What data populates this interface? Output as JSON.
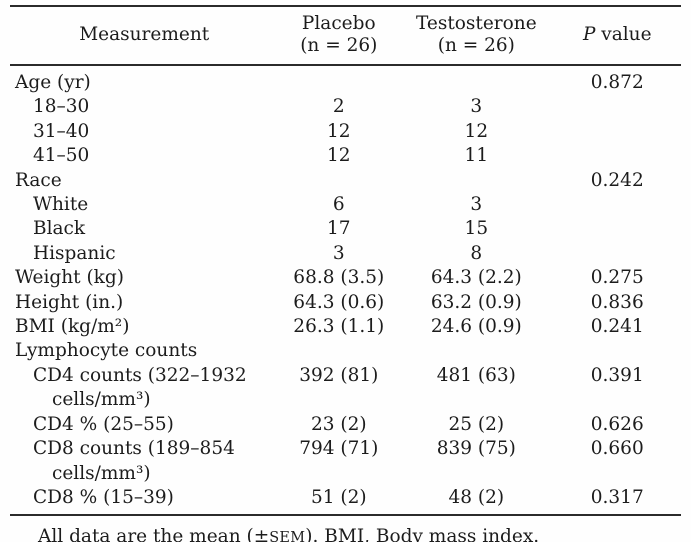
{
  "table": {
    "header": {
      "measurement": "Measurement",
      "placebo_line1": "Placebo",
      "placebo_line2": "(n = 26)",
      "testosterone_line1": "Testosterone",
      "testosterone_line2": "(n = 26)",
      "p_value_italic": "P",
      "p_value_rest": "value"
    },
    "rows": [
      {
        "label": "Age (yr)",
        "indent": 0,
        "placebo": "",
        "testosterone": "",
        "p": "0.872"
      },
      {
        "label": "18–30",
        "indent": 1,
        "placebo": "2",
        "testosterone": "3",
        "p": ""
      },
      {
        "label": "31–40",
        "indent": 1,
        "placebo": "12",
        "testosterone": "12",
        "p": ""
      },
      {
        "label": "41–50",
        "indent": 1,
        "placebo": "12",
        "testosterone": "11",
        "p": ""
      },
      {
        "label": "Race",
        "indent": 0,
        "placebo": "",
        "testosterone": "",
        "p": "0.242"
      },
      {
        "label": "White",
        "indent": 1,
        "placebo": "6",
        "testosterone": "3",
        "p": ""
      },
      {
        "label": "Black",
        "indent": 1,
        "placebo": "17",
        "testosterone": "15",
        "p": ""
      },
      {
        "label": "Hispanic",
        "indent": 1,
        "placebo": "3",
        "testosterone": "8",
        "p": ""
      },
      {
        "label": "Weight (kg)",
        "indent": 0,
        "placebo": "68.8 (3.5)",
        "testosterone": "64.3 (2.2)",
        "p": "0.275"
      },
      {
        "label": "Height (in.)",
        "indent": 0,
        "placebo": "64.3 (0.6)",
        "testosterone": "63.2 (0.9)",
        "p": "0.836"
      },
      {
        "label": "BMI (kg/m²)",
        "indent": 0,
        "placebo": "26.3 (1.1)",
        "testosterone": "24.6 (0.9)",
        "p": "0.241"
      },
      {
        "label": "Lymphocyte counts",
        "indent": 0,
        "placebo": "",
        "testosterone": "",
        "p": ""
      },
      {
        "label": "CD4 counts (322–1932",
        "label2": "cells/mm³)",
        "indent": 1,
        "placebo": "392 (81)",
        "testosterone": "481 (63)",
        "p": "0.391"
      },
      {
        "label": "CD4 % (25–55)",
        "indent": 1,
        "placebo": "23 (2)",
        "testosterone": "25 (2)",
        "p": "0.626"
      },
      {
        "label": "CD8 counts (189–854",
        "label2": "cells/mm³)",
        "indent": 1,
        "placebo": "794 (71)",
        "testosterone": "839 (75)",
        "p": "0.660"
      },
      {
        "label": "CD8 % (15–39)",
        "indent": 1,
        "placebo": "51 (2)",
        "testosterone": "48 (2)",
        "p": "0.317"
      }
    ],
    "footnote": {
      "pre": "All data are the mean (±",
      "small_caps": "SEM",
      "post": "). BMI, Body mass index."
    },
    "colors": {
      "background": "#fefefe",
      "text": "#1c1c1c",
      "rule": "#2b2b2b"
    }
  }
}
